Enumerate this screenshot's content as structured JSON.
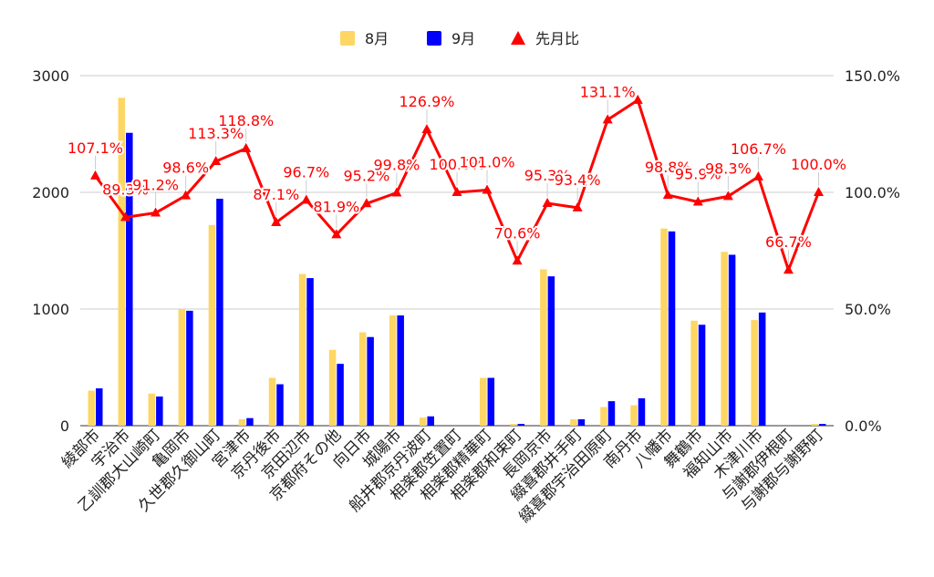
{
  "chart_data": {
    "type": "bar",
    "title": "",
    "xlabel": "",
    "ylabel": "",
    "ylim": [
      0,
      3000
    ],
    "y2lim": [
      0,
      150
    ],
    "yticks": [
      "0",
      "1000",
      "2000",
      "3000"
    ],
    "y2ticks": [
      "0.0%",
      "50.0%",
      "100.0%",
      "150.0%"
    ],
    "grid": true,
    "legend_position": "top-center",
    "categories": [
      "綾部市",
      "宇治市",
      "乙訓郡大山崎町",
      "亀岡市",
      "久世郡久御山町",
      "宮津市",
      "京丹後市",
      "京田辺市",
      "京都府その他",
      "向日市",
      "城陽市",
      "船井郡京丹波町",
      "相楽郡笠置町",
      "相楽郡精華町",
      "相楽郡和束町",
      "長岡京市",
      "綴喜郡井手町",
      "綴喜郡宇治田原町",
      "南丹市",
      "八幡市",
      "舞鶴市",
      "福知山市",
      "木津川市",
      "与謝郡伊根町",
      "与謝郡与謝野町"
    ],
    "series": [
      {
        "name": "8月",
        "kind": "bar",
        "axis": "left",
        "color": "#fdd663",
        "values": [
          300,
          2810,
          275,
          1000,
          1720,
          55,
          410,
          1300,
          650,
          800,
          945,
          70,
          0,
          410,
          15,
          1340,
          55,
          160,
          175,
          1690,
          900,
          1490,
          905,
          0,
          15
        ]
      },
      {
        "name": "9月",
        "kind": "bar",
        "axis": "left",
        "color": "#0000ff",
        "values": [
          320,
          2510,
          250,
          985,
          1945,
          65,
          355,
          1265,
          530,
          760,
          945,
          80,
          0,
          410,
          15,
          1280,
          55,
          210,
          235,
          1665,
          865,
          1465,
          970,
          0,
          15
        ]
      },
      {
        "name": "先月比",
        "kind": "line",
        "axis": "right",
        "color": "#ff0000",
        "values": [
          107.1,
          89.3,
          91.2,
          98.6,
          113.3,
          118.8,
          87.1,
          96.7,
          81.9,
          95.2,
          99.8,
          126.9,
          100.0,
          101.0,
          70.6,
          95.3,
          93.4,
          131.1,
          139.5,
          98.8,
          95.9,
          98.3,
          106.7,
          66.7,
          100.0
        ],
        "labels": [
          "107.1%",
          "89.3%",
          "91.2%",
          "98.6%",
          "113.3%",
          "118.8%",
          "87.1%",
          "96.7%",
          "81.9%",
          "95.2%",
          "99.8%",
          "126.9%",
          "100.0%",
          "101.0%",
          "70.6%",
          "95.3%",
          "93.4%",
          "131.1%",
          "",
          "98.8%",
          "95.9%",
          "98.3%",
          "106.7%",
          "66.7%",
          "100.0%"
        ]
      }
    ]
  }
}
